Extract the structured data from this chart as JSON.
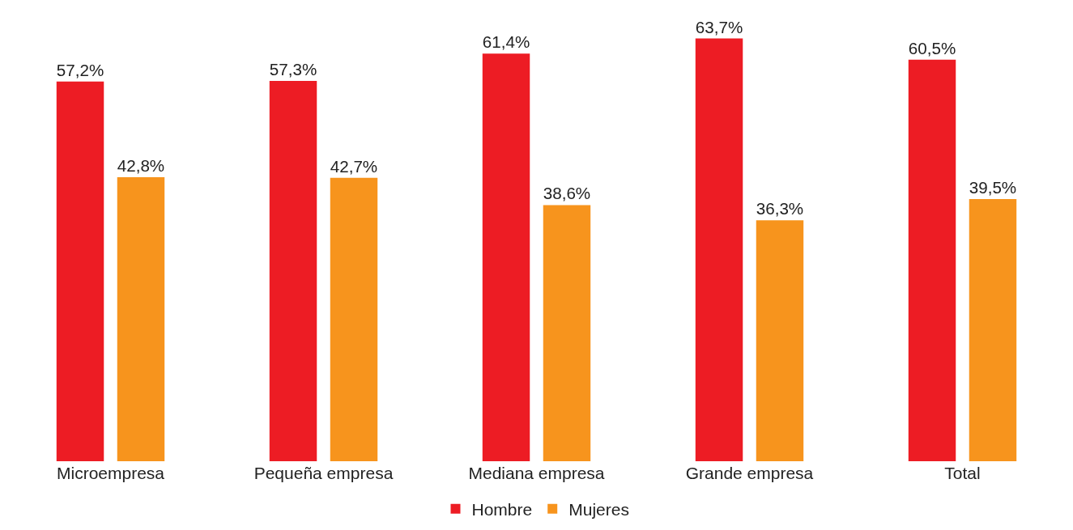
{
  "chart_data": {
    "type": "bar",
    "categories": [
      "Microempresa",
      "Pequeña empresa",
      "Mediana empresa",
      "Grande empresa",
      "Total"
    ],
    "series": [
      {
        "name": "Hombre",
        "color": "#ed1c24",
        "values": [
          57.2,
          57.3,
          61.4,
          63.7,
          60.5
        ],
        "value_labels": [
          "57,2%",
          "57,3%",
          "61,4%",
          "63,7%",
          "60,5%"
        ]
      },
      {
        "name": "Mujeres",
        "color": "#f7941d",
        "values": [
          42.8,
          42.7,
          38.6,
          36.3,
          39.5
        ],
        "value_labels": [
          "42,8%",
          "42,7%",
          "38,6%",
          "36,3%",
          "39,5%"
        ]
      }
    ],
    "legend": "bottom"
  }
}
